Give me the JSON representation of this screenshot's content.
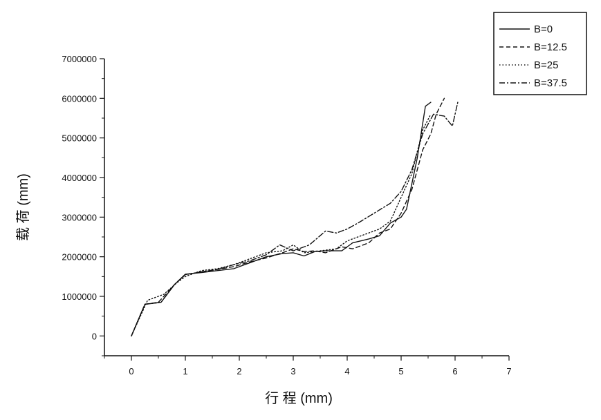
{
  "chart_data": {
    "type": "line",
    "title": "",
    "xlabel": "行 程 (mm)",
    "ylabel": "载 荷 (mm)",
    "xlim": [
      -0.5,
      7
    ],
    "ylim": [
      -500000,
      7000000
    ],
    "xticks": [
      0,
      1,
      2,
      3,
      4,
      5,
      6,
      7
    ],
    "yticks": [
      0,
      1000000,
      2000000,
      3000000,
      4000000,
      5000000,
      6000000,
      7000000
    ],
    "xtick_labels": [
      "0",
      "1",
      "2",
      "3",
      "4",
      "5",
      "6",
      "7"
    ],
    "ytick_labels": [
      "0",
      "1000000",
      "2000000",
      "3000000",
      "4000000",
      "5000000",
      "6000000",
      "7000000"
    ],
    "grid": false,
    "legend_position": "top-right",
    "series": [
      {
        "name": "B=0",
        "dash": "solid",
        "x": [
          0,
          0.25,
          0.55,
          0.8,
          1.0,
          1.3,
          1.6,
          1.9,
          2.2,
          2.5,
          2.8,
          3.0,
          3.2,
          3.4,
          3.6,
          3.9,
          4.1,
          4.4,
          4.6,
          4.8,
          5.0,
          5.1,
          5.3,
          5.45,
          5.55
        ],
        "y": [
          0,
          800000,
          850000,
          1300000,
          1560000,
          1600000,
          1650000,
          1700000,
          1850000,
          2000000,
          2080000,
          2100000,
          2020000,
          2130000,
          2150000,
          2150000,
          2350000,
          2450000,
          2530000,
          2850000,
          3000000,
          3200000,
          4500000,
          5800000,
          5900000
        ]
      },
      {
        "name": "B=12.5",
        "dash": "dashed",
        "x": [
          0,
          0.25,
          0.5,
          0.8,
          1.0,
          1.3,
          1.6,
          1.9,
          2.2,
          2.5,
          2.8,
          3.0,
          3.2,
          3.4,
          3.6,
          3.9,
          4.1,
          4.4,
          4.6,
          4.8,
          5.0,
          5.2,
          5.4,
          5.55,
          5.65,
          5.8
        ],
        "y": [
          0,
          800000,
          850000,
          1300000,
          1550000,
          1620000,
          1680000,
          1750000,
          1870000,
          1970000,
          2100000,
          2200000,
          2130000,
          2150000,
          2100000,
          2250000,
          2200000,
          2350000,
          2600000,
          2700000,
          3100000,
          3700000,
          4700000,
          5100000,
          5600000,
          6000000
        ]
      },
      {
        "name": "B=25",
        "dash": "dotted",
        "x": [
          0,
          0.3,
          0.6,
          0.85,
          1.0,
          1.3,
          1.6,
          1.9,
          2.2,
          2.5,
          2.8,
          3.0,
          3.2,
          3.5,
          3.8,
          4.0,
          4.3,
          4.6,
          4.8,
          5.0,
          5.2,
          5.4,
          5.55
        ],
        "y": [
          0,
          900000,
          1050000,
          1350000,
          1500000,
          1650000,
          1700000,
          1800000,
          1950000,
          2100000,
          2150000,
          2300000,
          2100000,
          2150000,
          2200000,
          2400000,
          2550000,
          2700000,
          2900000,
          3500000,
          4100000,
          5200000,
          5600000
        ]
      },
      {
        "name": "B=37.5",
        "dash": "dashdot",
        "x": [
          0,
          0.25,
          0.55,
          0.8,
          1.0,
          1.3,
          1.6,
          1.9,
          2.2,
          2.5,
          2.75,
          3.0,
          3.3,
          3.6,
          3.8,
          4.0,
          4.2,
          4.5,
          4.8,
          5.0,
          5.2,
          5.4,
          5.6,
          5.8,
          5.95,
          6.05
        ],
        "y": [
          0,
          800000,
          850000,
          1300000,
          1550000,
          1620000,
          1680000,
          1800000,
          1900000,
          2050000,
          2300000,
          2150000,
          2300000,
          2650000,
          2600000,
          2700000,
          2850000,
          3100000,
          3350000,
          3650000,
          4200000,
          5100000,
          5600000,
          5550000,
          5300000,
          5900000
        ]
      }
    ]
  }
}
